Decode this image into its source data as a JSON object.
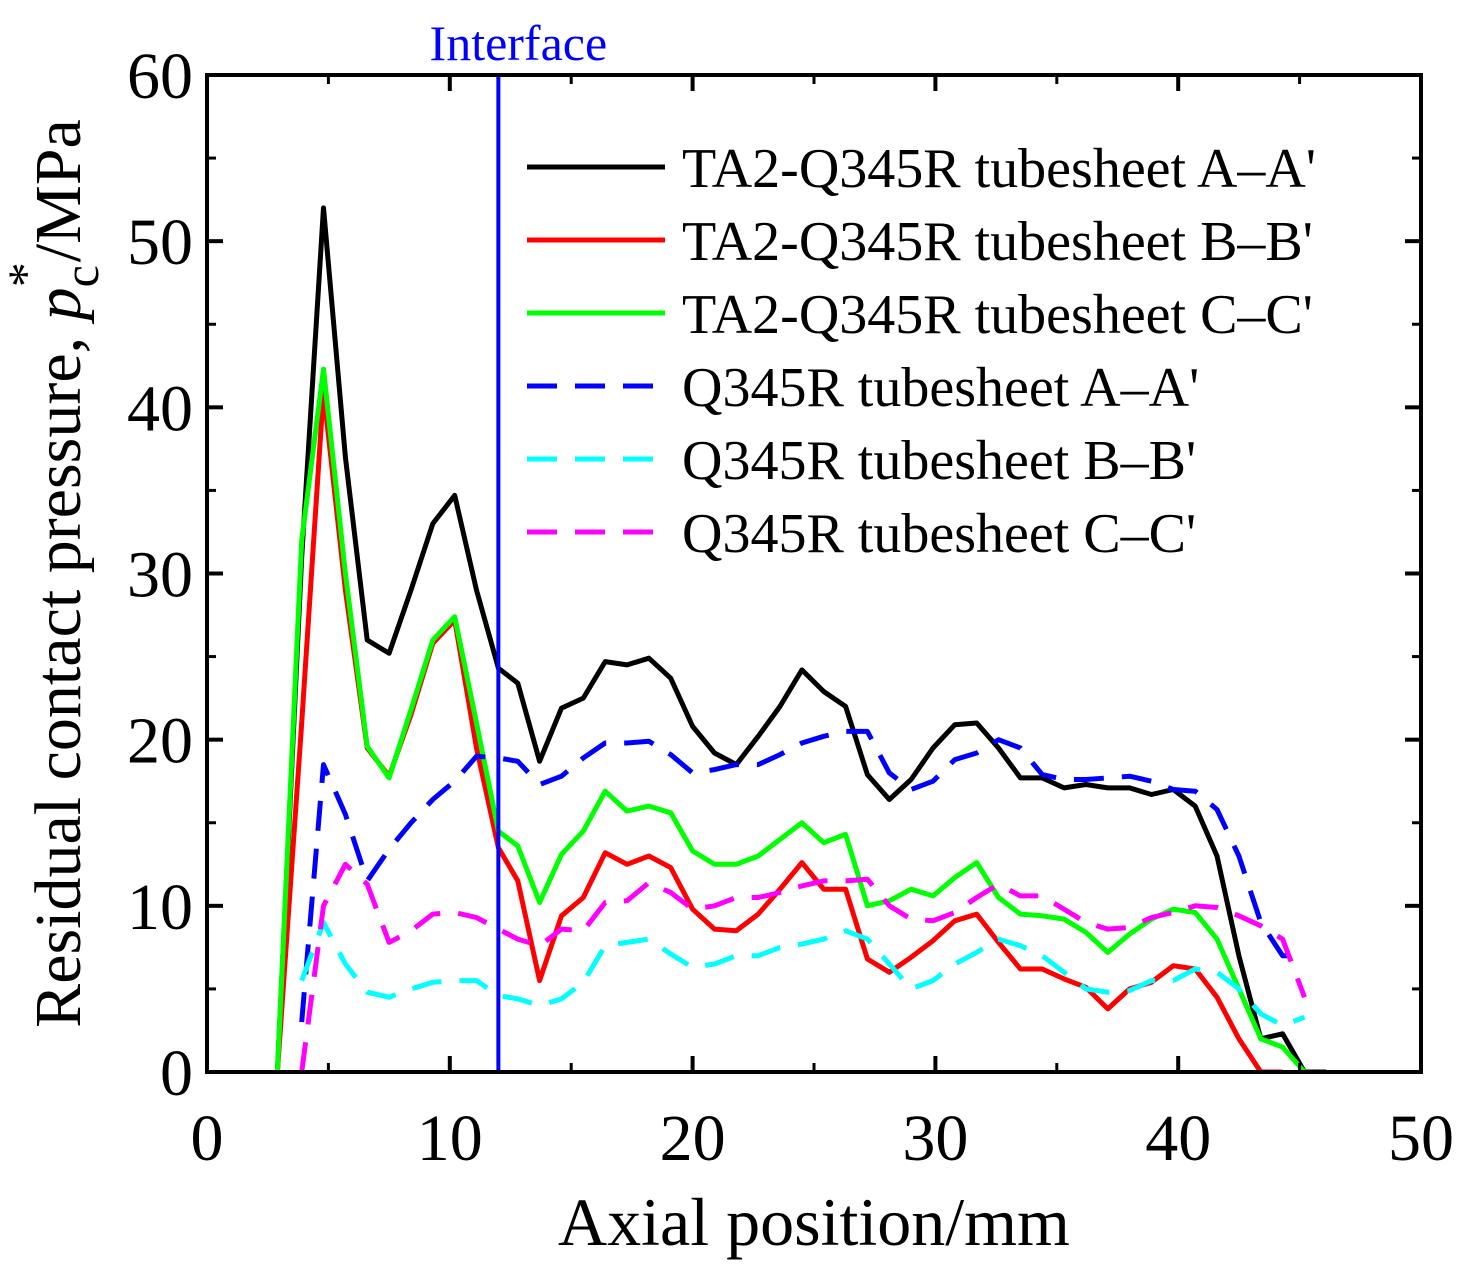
{
  "chart_data": {
    "type": "line",
    "title": "",
    "xlabel": "Axial position/mm",
    "ylabel": {
      "prefix": "Residual contact pressure, ",
      "symbol": "p",
      "subscript": "c",
      "superscript": "*",
      "suffix": "/MPa"
    },
    "xlim": [
      0,
      50
    ],
    "ylim": [
      0,
      60
    ],
    "xticks": [
      0,
      10,
      20,
      30,
      40,
      50
    ],
    "yticks": [
      0,
      10,
      20,
      30,
      40,
      50,
      60
    ],
    "grid": false,
    "legend_position": "top-right",
    "annotations": [
      {
        "text": "Interface",
        "x": 12,
        "color": "#0000ff"
      }
    ],
    "series": [
      {
        "name": "TA2-Q345R tubesheet A–A'",
        "color": "#000000",
        "dash": "solid",
        "x": [
          2.9,
          3.9,
          4.8,
          5.7,
          6.6,
          7.5,
          8.4,
          9.3,
          10.2,
          11.1,
          12.0,
          12.8,
          13.7,
          14.6,
          15.5,
          16.4,
          17.3,
          18.2,
          19.1,
          20.0,
          20.9,
          21.8,
          22.7,
          23.6,
          24.5,
          25.4,
          26.3,
          27.2,
          28.1,
          29.0,
          29.9,
          30.8,
          31.7,
          32.6,
          33.5,
          34.4,
          35.3,
          36.2,
          37.1,
          38.0,
          38.9,
          39.8,
          40.7,
          41.6,
          42.5,
          43.4,
          44.3,
          45.2,
          46.1
        ],
        "y": [
          0,
          31,
          52,
          37,
          26,
          25.2,
          29,
          33,
          34.7,
          29,
          24.3,
          23.4,
          18.7,
          21.9,
          22.5,
          24.7,
          24.5,
          24.9,
          23.7,
          20.8,
          19.2,
          18.5,
          20.2,
          22,
          24.2,
          22.9,
          22,
          17.9,
          16.4,
          17.6,
          19.5,
          20.9,
          21,
          19.5,
          17.7,
          17.7,
          17.1,
          17.3,
          17.1,
          17.1,
          16.7,
          17,
          16,
          13,
          7,
          2,
          2.3,
          0,
          0
        ],
        "x_end": 46.1
      },
      {
        "name": "TA2-Q345R tubesheet B–B'",
        "color": "#ff0000",
        "dash": "solid",
        "x": [
          2.9,
          3.9,
          4.8,
          5.7,
          6.6,
          7.5,
          8.4,
          9.3,
          10.2,
          11.1,
          12.0,
          12.8,
          13.7,
          14.6,
          15.5,
          16.4,
          17.3,
          18.2,
          19.1,
          20.0,
          20.9,
          21.8,
          22.7,
          23.6,
          24.5,
          25.4,
          26.3,
          27.2,
          28.1,
          29.0,
          29.9,
          30.8,
          31.7,
          32.6,
          33.5,
          34.4,
          35.3,
          36.2,
          37.1,
          38.0,
          38.9,
          39.8,
          40.7,
          41.6,
          42.5,
          43.4,
          44.3
        ],
        "y": [
          0,
          21,
          41,
          29,
          19.5,
          17.8,
          21.5,
          25.8,
          27.2,
          19.5,
          13.5,
          11.5,
          5.5,
          9.4,
          10.5,
          13.2,
          12.5,
          13,
          12.3,
          9.8,
          8.6,
          8.5,
          9.5,
          11,
          12.6,
          11,
          11,
          6.8,
          6,
          6.9,
          7.9,
          9.1,
          9.5,
          7.8,
          6.2,
          6.2,
          5.6,
          5.1,
          3.8,
          5,
          5.4,
          6.4,
          6.2,
          4.5,
          2,
          0,
          0
        ]
      },
      {
        "name": "TA2-Q345R tubesheet C–C'",
        "color": "#00ff00",
        "dash": "solid",
        "x": [
          2.9,
          3.9,
          4.8,
          5.7,
          6.6,
          7.5,
          8.4,
          9.3,
          10.2,
          11.1,
          12.0,
          12.8,
          13.7,
          14.6,
          15.5,
          16.4,
          17.3,
          18.2,
          19.1,
          20.0,
          20.9,
          21.8,
          22.7,
          23.6,
          24.5,
          25.4,
          26.3,
          27.2,
          28.1,
          29.0,
          29.9,
          30.8,
          31.7,
          32.6,
          33.5,
          34.4,
          35.3,
          36.2,
          37.1,
          38.0,
          38.9,
          39.8,
          40.7,
          41.6,
          42.5,
          43.4,
          44.3,
          45.2
        ],
        "y": [
          0,
          32,
          42.3,
          30,
          19.6,
          17.7,
          21.8,
          26,
          27.4,
          21,
          14.5,
          13.6,
          10.2,
          13.1,
          14.5,
          16.9,
          15.7,
          16,
          15.6,
          13.3,
          12.5,
          12.5,
          13,
          14,
          15,
          13.8,
          14.3,
          10,
          10.3,
          11,
          10.6,
          11.7,
          12.6,
          10.5,
          9.5,
          9.4,
          9.2,
          8.4,
          7.2,
          8.3,
          9.2,
          9.8,
          9.6,
          8,
          5,
          2,
          1.5,
          0
        ]
      },
      {
        "name": "Q345R tubesheet A–A'",
        "color": "#0000ff",
        "dash": "dashed",
        "x": [
          3.9,
          4.8,
          5.7,
          6.6,
          7.5,
          8.4,
          9.3,
          10.2,
          11.1,
          12.0,
          12.8,
          13.7,
          14.6,
          15.5,
          16.4,
          17.3,
          18.2,
          19.1,
          20.0,
          20.9,
          21.8,
          22.7,
          23.6,
          24.5,
          25.4,
          26.3,
          27.2,
          28.1,
          29.0,
          29.9,
          30.8,
          31.7,
          32.6,
          33.5,
          34.4,
          35.3,
          36.2,
          37.1,
          38.0,
          38.9,
          39.8,
          40.7,
          41.6,
          42.5,
          43.4,
          44.3,
          45.2
        ],
        "y": [
          3,
          18.5,
          15.5,
          11.5,
          13.4,
          15,
          16.4,
          17.5,
          19,
          18.9,
          18.7,
          17.3,
          17.8,
          18.9,
          19.8,
          19.8,
          19.9,
          19.1,
          18,
          18.2,
          18.5,
          18.5,
          19.1,
          19.8,
          20.2,
          20.5,
          20.5,
          18,
          17,
          17.5,
          18.8,
          19.2,
          20,
          19.5,
          17.9,
          17.6,
          17.6,
          17.7,
          17.8,
          17.5,
          17,
          16.9,
          15.8,
          13,
          9,
          7,
          7
        ]
      },
      {
        "name": "Q345R tubesheet B–B'",
        "color": "#00ffff",
        "dash": "dashed",
        "x": [
          3.9,
          4.8,
          5.7,
          6.6,
          7.5,
          8.4,
          9.3,
          10.2,
          11.1,
          12.0,
          12.8,
          13.7,
          14.6,
          15.5,
          16.4,
          17.3,
          18.2,
          19.1,
          20.0,
          20.9,
          21.8,
          22.7,
          23.6,
          24.5,
          25.4,
          26.3,
          27.2,
          28.1,
          29.0,
          29.9,
          30.8,
          31.7,
          32.6,
          33.5,
          34.4,
          35.3,
          36.2,
          37.1,
          38.0,
          38.9,
          39.8,
          40.7,
          41.6,
          42.5,
          43.4,
          44.3,
          45.2
        ],
        "y": [
          5.5,
          9,
          6.5,
          4.8,
          4.5,
          5,
          5.4,
          5.5,
          5.5,
          4.6,
          4.4,
          4,
          4.4,
          5.4,
          7.6,
          7.8,
          8,
          7.1,
          6.3,
          6.5,
          7,
          7,
          7.5,
          7.7,
          8,
          8.5,
          8,
          6.5,
          5,
          5.5,
          6.5,
          7.2,
          8,
          7.6,
          7,
          6,
          5,
          4.8,
          4.9,
          5.5,
          5.5,
          6.2,
          6,
          5,
          3.5,
          2.8,
          3.3
        ]
      },
      {
        "name": "Q345R tubesheet C–C'",
        "color": "#ff00ff",
        "dash": "dashed",
        "x": [
          3.9,
          4.8,
          5.7,
          6.6,
          7.5,
          8.4,
          9.3,
          10.2,
          11.1,
          12.0,
          12.8,
          13.7,
          14.6,
          15.5,
          16.4,
          17.3,
          18.2,
          19.1,
          20.0,
          20.9,
          21.8,
          22.7,
          23.6,
          24.5,
          25.4,
          26.3,
          27.2,
          28.1,
          29.0,
          29.9,
          30.8,
          31.7,
          32.6,
          33.5,
          34.4,
          35.3,
          36.2,
          37.1,
          38.0,
          38.9,
          39.8,
          40.7,
          41.6,
          42.5,
          43.4,
          44.3,
          45.2
        ],
        "y": [
          0,
          10,
          12.5,
          11.3,
          7.8,
          8.5,
          9.5,
          9.6,
          9.3,
          8.6,
          8,
          7.6,
          8.6,
          8.5,
          10.2,
          10.3,
          11.4,
          10.8,
          9.8,
          10,
          10.5,
          10.5,
          10.8,
          11.2,
          11.5,
          11.5,
          11.6,
          10,
          9.2,
          9.1,
          9.6,
          10.5,
          11.3,
          10.6,
          10.6,
          9.8,
          9,
          8.6,
          8.7,
          9.3,
          9.6,
          10,
          9.9,
          9.4,
          8.8,
          8,
          4.5
        ]
      }
    ]
  }
}
